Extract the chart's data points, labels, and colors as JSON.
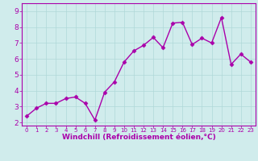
{
  "x": [
    0,
    1,
    2,
    3,
    4,
    5,
    6,
    7,
    8,
    9,
    10,
    11,
    12,
    13,
    14,
    15,
    16,
    17,
    18,
    19,
    20,
    21,
    22,
    23
  ],
  "y": [
    2.4,
    2.9,
    3.2,
    3.2,
    3.5,
    3.6,
    3.2,
    2.15,
    3.9,
    4.55,
    5.8,
    6.5,
    6.85,
    7.35,
    6.7,
    8.25,
    8.3,
    6.9,
    7.3,
    7.0,
    8.6,
    5.65,
    6.3,
    5.8
  ],
  "line_color": "#aa00aa",
  "marker": "D",
  "marker_size": 2.5,
  "bg_color": "#d0ecec",
  "grid_color": "#b0d8d8",
  "xlabel": "Windchill (Refroidissement éolien,°C)",
  "xlabel_color": "#aa00aa",
  "tick_color": "#aa00aa",
  "xlim": [
    -0.5,
    23.5
  ],
  "ylim": [
    1.8,
    9.5
  ],
  "yticks": [
    2,
    3,
    4,
    5,
    6,
    7,
    8,
    9
  ],
  "xticks": [
    0,
    1,
    2,
    3,
    4,
    5,
    6,
    7,
    8,
    9,
    10,
    11,
    12,
    13,
    14,
    15,
    16,
    17,
    18,
    19,
    20,
    21,
    22,
    23
  ],
  "linewidth": 1.0,
  "spine_color": "#aa00aa",
  "xlabel_fontsize": 6.5,
  "xtick_fontsize": 5.0,
  "ytick_fontsize": 6.5
}
